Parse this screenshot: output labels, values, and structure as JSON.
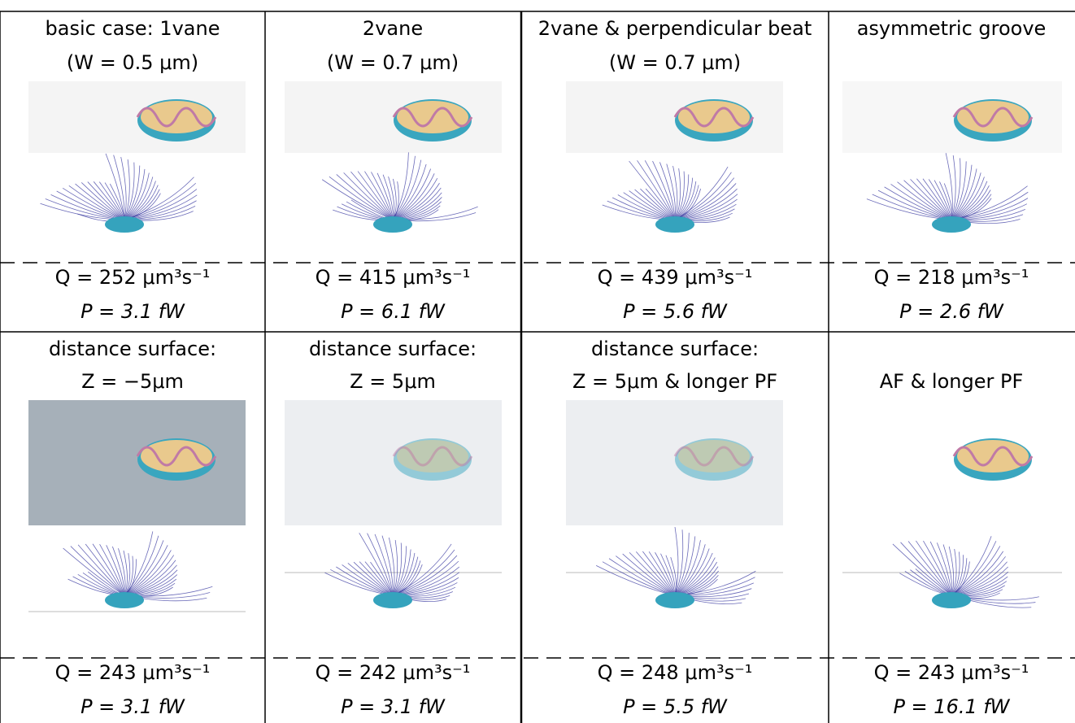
{
  "rows": [
    {
      "cells": [
        {
          "title": [
            "basic case: 1vane",
            "(W = 0.5 μm)"
          ],
          "q": "Q = 252 μm³s⁻¹",
          "p": "P = 3.1 fW"
        },
        {
          "title": [
            "2vane",
            "(W = 0.7 μm)"
          ],
          "q": "Q = 415 μm³s⁻¹",
          "p": "P = 6.1 fW"
        },
        {
          "title": [
            "2vane & perpendicular beat",
            "(W = 0.7 μm)"
          ],
          "q": "Q = 439 μm³s⁻¹",
          "p": "P = 5.6 fW"
        },
        {
          "title": [
            "asymmetric groove"
          ],
          "q": "Q = 218 μm³s⁻¹",
          "p": "P = 2.6 fW"
        }
      ]
    },
    {
      "cells": [
        {
          "title": [
            "distance surface:",
            "Z = −5μm"
          ],
          "q": "Q = 243 μm³s⁻¹",
          "p": "P = 3.1 fW"
        },
        {
          "title": [
            "distance surface:",
            "Z = 5μm"
          ],
          "q": "Q = 242 μm³s⁻¹",
          "p": "P = 3.1 fW"
        },
        {
          "title": [
            "distance surface:",
            "Z = 5μm & longer PF"
          ],
          "q": "Q = 248 μm³s⁻¹",
          "p": "P = 5.5 fW"
        },
        {
          "title": [
            "",
            "AF & longer PF"
          ],
          "q": "Q = 243 μm³s⁻¹",
          "p": "P = 16.1 fW"
        }
      ]
    }
  ]
}
